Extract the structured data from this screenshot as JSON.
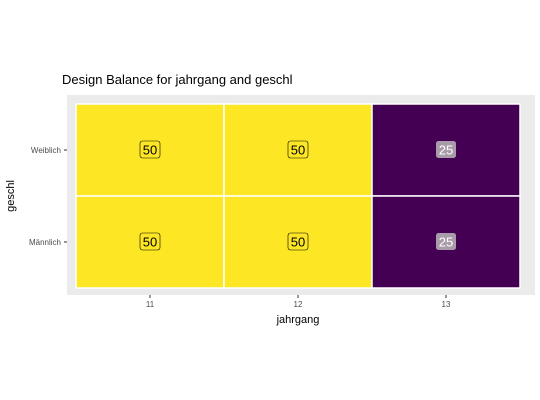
{
  "chart_data": {
    "type": "heatmap",
    "title": "Design Balance for jahrgang and geschl",
    "xlabel": "jahrgang",
    "ylabel": "geschl",
    "x": [
      "11",
      "12",
      "13"
    ],
    "y": [
      "Weiblich",
      "Männlich"
    ],
    "values": [
      [
        50,
        50,
        25
      ],
      [
        50,
        50,
        25
      ]
    ],
    "value_range": [
      25,
      50
    ],
    "colors": {
      "low": "#440154",
      "high": "#FDE725",
      "panel_background": "#EBEBEB",
      "cell_border": "#FFFFFF",
      "label_fill_high": "#FDE725",
      "label_fill_low": "#A89BAA"
    },
    "legend": "none",
    "grid": true
  }
}
